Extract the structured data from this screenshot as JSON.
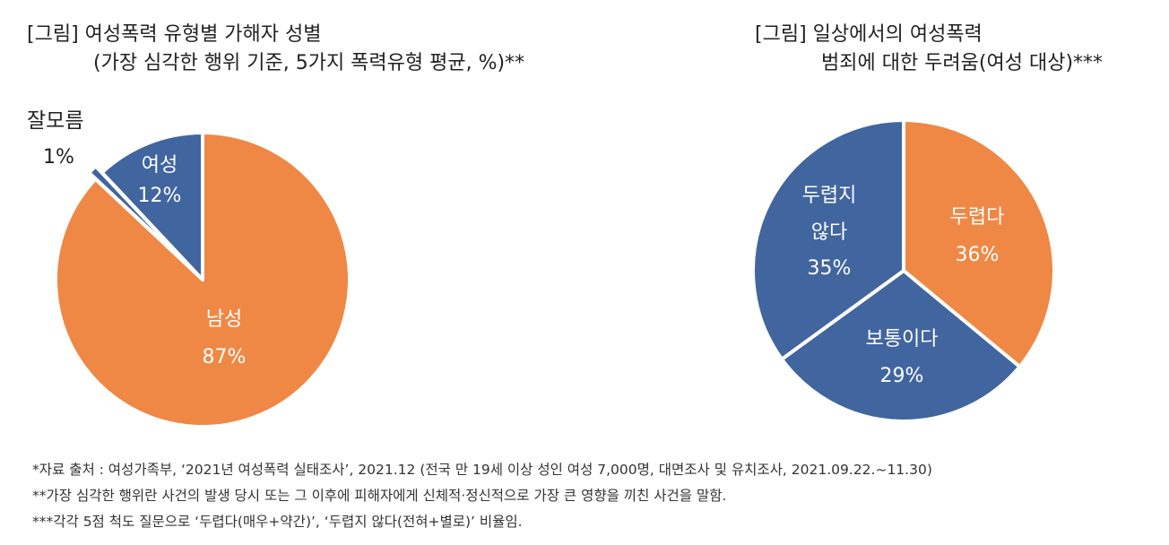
{
  "colors": {
    "orange": "#EF8845",
    "blue": "#41659F",
    "white": "#FFFFFF",
    "dark": "#222222"
  },
  "chart_data": [
    {
      "type": "pie",
      "title": "[그림] 여성폭력 유형별 가해자 성별",
      "subtitle": "(가장 심각한 행위 기준, 5가지 폭력유형 평균, %)**",
      "slices": [
        {
          "label": "남성",
          "value": 87,
          "value_label": "87%",
          "color": "#EF8845"
        },
        {
          "label": "잘모름",
          "value": 1,
          "value_label": "1%",
          "color": "#41659F"
        },
        {
          "label": "여성",
          "value": 12,
          "value_label": "12%",
          "color": "#41659F"
        }
      ]
    },
    {
      "type": "pie",
      "title": "[그림] 일상에서의 여성폭력",
      "subtitle": "범죄에 대한 두려움(여성 대상)***",
      "slices": [
        {
          "label": "두렵다",
          "value": 36,
          "value_label": "36%",
          "color": "#EF8845"
        },
        {
          "label": "보통이다",
          "value": 29,
          "value_label": "29%",
          "color": "#41659F"
        },
        {
          "label": "두렵지 않다",
          "label_lines": [
            "두렵지",
            "않다"
          ],
          "value": 35,
          "value_label": "35%",
          "color": "#41659F"
        }
      ]
    }
  ],
  "footnotes": [
    "*자료 출처 : 여성가족부, ‘2021년 여성폭력 실태조사’, 2021.12 (전국 만 19세 이상 성인 여성 7,000명, 대면조사 및 유치조사, 2021.09.22.~11.30)",
    "**가장 심각한 행위란 사건의 발생 당시 또는 그 이후에 피해자에게 신체적·정신적으로 가장 큰 영향을 끼친 사건을 말함.",
    "***각각 5점 척도 질문으로 ‘두렵다(매우+약간)’, ‘두렵지 않다(전혀+별로)’ 비율임."
  ]
}
